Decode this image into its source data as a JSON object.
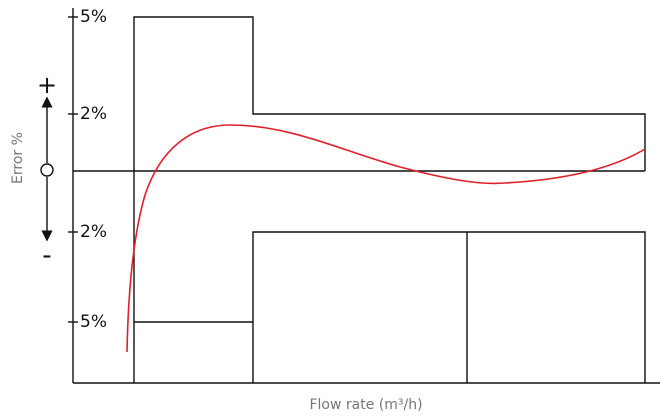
{
  "axes": {
    "y_label": "Error %",
    "x_label": "Flow rate (m³/h)",
    "y_ticks": [
      "5%",
      "2%",
      "2%",
      "5%"
    ],
    "plus": "+",
    "minus": "-"
  }
}
